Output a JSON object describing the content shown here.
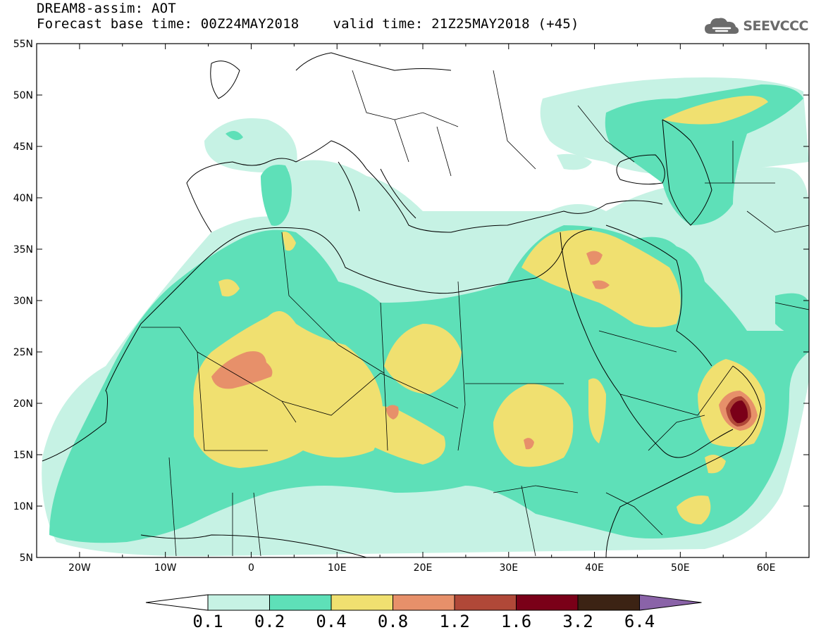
{
  "header": {
    "title": "DREAM8-assim: AOT",
    "base_time": "Forecast base time: 00Z24MAY2018",
    "valid_time": "valid time: 21Z25MAY2018 (+45)"
  },
  "logo": {
    "text": "SEEVCCC",
    "icon": "cloud-icon"
  },
  "map": {
    "variable": "AOT",
    "lon_range": [
      -25,
      65
    ],
    "lat_range": [
      5,
      55
    ],
    "lat_ticks": [
      "5N",
      "10N",
      "15N",
      "20N",
      "25N",
      "30N",
      "35N",
      "40N",
      "45N",
      "50N",
      "55N"
    ],
    "lon_ticks": [
      "20W",
      "10W",
      "0",
      "10E",
      "20E",
      "30E",
      "40E",
      "50E",
      "60E"
    ],
    "max_value_region": "Arabian Sea coast near 20N 57E"
  },
  "colorbar": {
    "labels": [
      "0.1",
      "0.2",
      "0.4",
      "0.8",
      "1.2",
      "1.6",
      "3.2",
      "6.4"
    ],
    "colors": [
      "#ffffff",
      "#c6f2e4",
      "#5ee0b8",
      "#f0e070",
      "#e7906a",
      "#b04838",
      "#7a0018",
      "#3c2314",
      "#8a63a8"
    ]
  }
}
